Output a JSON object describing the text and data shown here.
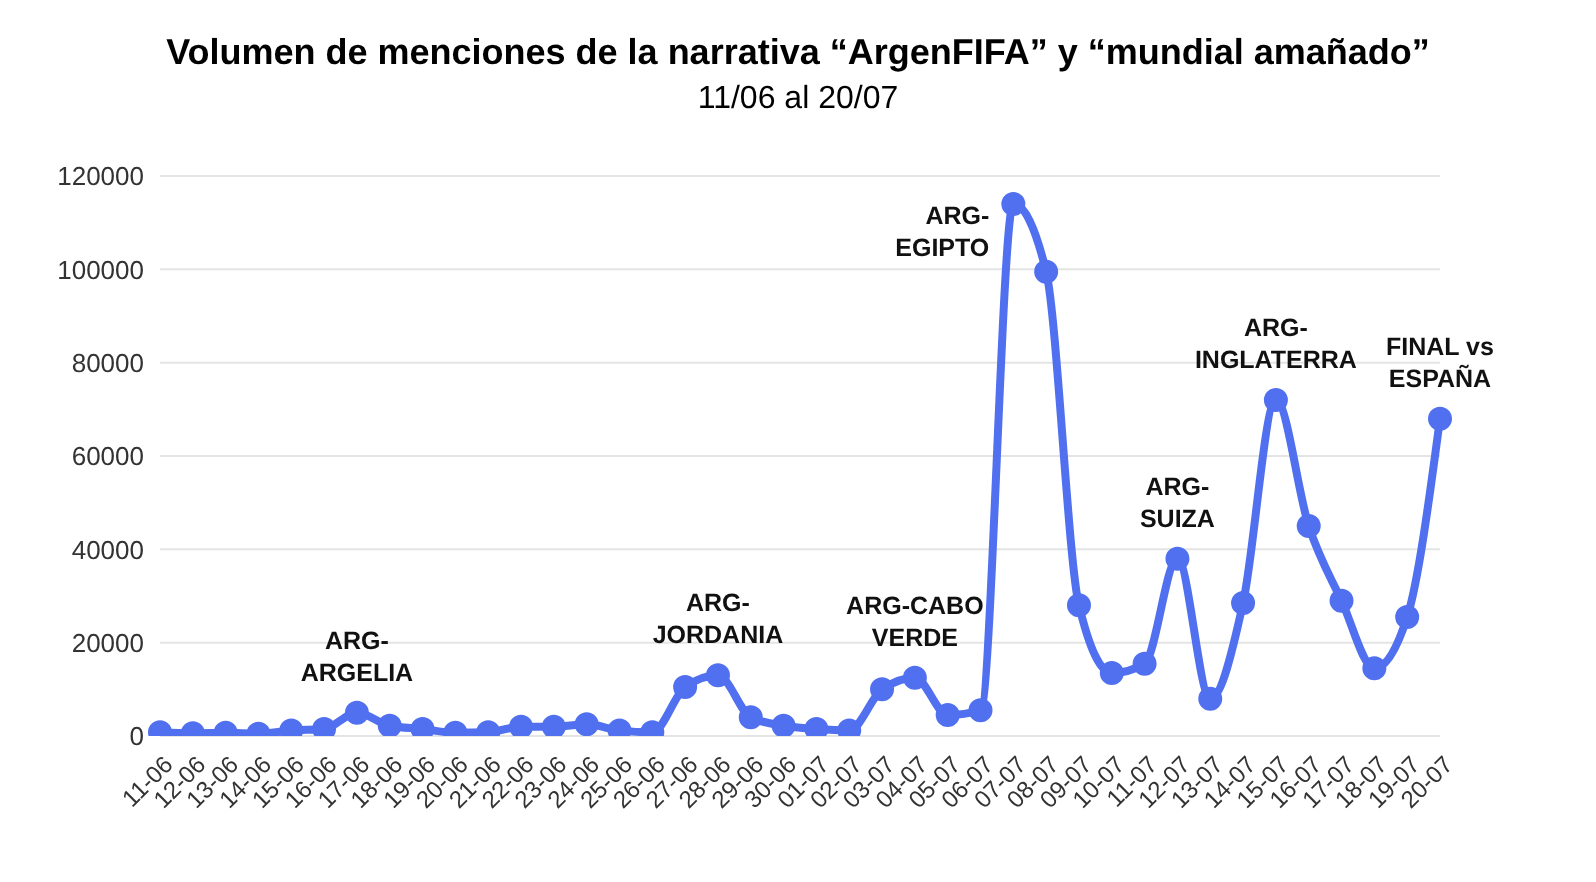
{
  "chart_data": {
    "type": "line",
    "title": "Volumen de menciones de la narrativa “ArgenFIFA” y “mundial amañado”",
    "subtitle": "11/06 al 20/07",
    "categories": [
      "11-06",
      "12-06",
      "13-06",
      "14-06",
      "15-06",
      "16-06",
      "17-06",
      "18-06",
      "19-06",
      "20-06",
      "21-06",
      "22-06",
      "23-06",
      "24-06",
      "25-06",
      "26-06",
      "27-06",
      "28-06",
      "29-06",
      "30-06",
      "01-07",
      "02-07",
      "03-07",
      "04-07",
      "05-07",
      "06-07",
      "07-07",
      "08-07",
      "09-07",
      "10-07",
      "11-07",
      "12-07",
      "13-07",
      "14-07",
      "15-07",
      "16-07",
      "17-07",
      "18-07",
      "19-07",
      "20-07"
    ],
    "series": [
      {
        "color": "#5070f0",
        "values": [
          800,
          600,
          700,
          500,
          1200,
          1500,
          5000,
          2200,
          1500,
          700,
          800,
          2000,
          2000,
          2500,
          1200,
          800,
          10500,
          13000,
          4000,
          2200,
          1500,
          1200,
          10000,
          12500,
          4500,
          5500,
          114000,
          99500,
          28000,
          13500,
          15500,
          38000,
          8000,
          28500,
          72000,
          45000,
          29000,
          14500,
          25500,
          68000
        ]
      }
    ],
    "ylim": [
      0,
      120000
    ],
    "yticks": [
      0,
      20000,
      40000,
      60000,
      80000,
      100000,
      120000
    ],
    "grid": "y",
    "marker": "circle",
    "annotations": [
      {
        "text": "ARG-ARGELIA",
        "x": "17-06",
        "y": 5000
      },
      {
        "text": "ARG-JORDANIA",
        "x": "28-06",
        "y": 13000
      },
      {
        "text": "ARG-CABO VERDE",
        "x": "04-07",
        "y": 12500
      },
      {
        "text": "ARG-EGIPTO",
        "x": "07-07",
        "y": 114000
      },
      {
        "text": "ARG-SUIZA",
        "x": "12-07",
        "y": 38000
      },
      {
        "text": "ARG-INGLATERRA",
        "x": "15-07",
        "y": 72000
      },
      {
        "text": "FINAL vs ESPAÑA",
        "x": "20-07",
        "y": 68000
      }
    ]
  }
}
